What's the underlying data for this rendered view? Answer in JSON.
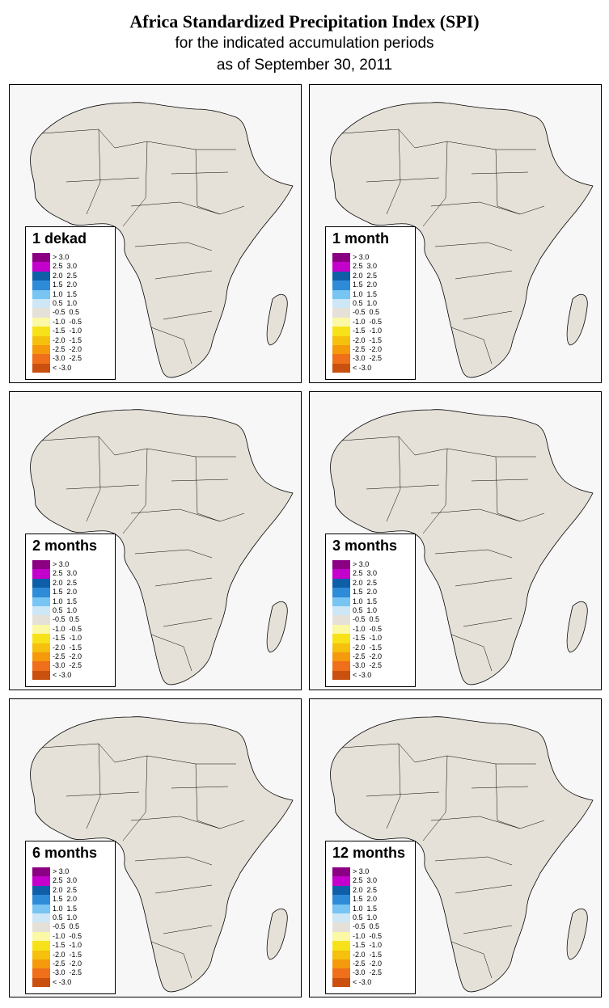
{
  "header": {
    "title": "Africa Standardized Precipitation Index (SPI)",
    "subtitle_line1": "for the indicated accumulation periods",
    "subtitle_line2": "as of September 30, 2011"
  },
  "legend_classes": [
    {
      "label": "> 3.0",
      "color": "#8b0083"
    },
    {
      "label": "2.5  3.0",
      "color": "#c400cc"
    },
    {
      "label": "2.0  2.5",
      "color": "#0f5fa8"
    },
    {
      "label": "1.5  2.0",
      "color": "#2e8bd8"
    },
    {
      "label": "1.0  1.5",
      "color": "#78c4f2"
    },
    {
      "label": "0.5  1.0",
      "color": "#cde7f7"
    },
    {
      "label": "-0.5  0.5",
      "color": "#e6e1d8"
    },
    {
      "label": "-1.0  -0.5",
      "color": "#fbf8a6"
    },
    {
      "label": "-1.5  -1.0",
      "color": "#f7e21a"
    },
    {
      "label": "-2.0  -1.5",
      "color": "#f5c00e"
    },
    {
      "label": "-2.5  -2.0",
      "color": "#f49a0c"
    },
    {
      "label": "-3.0  -2.5",
      "color": "#ef6f1a"
    },
    {
      "label": "< -3.0",
      "color": "#c9500f"
    }
  ],
  "panels": [
    {
      "title": "1 dekad"
    },
    {
      "title": "1 month"
    },
    {
      "title": "2 months"
    },
    {
      "title": "3 months"
    },
    {
      "title": "6 months"
    },
    {
      "title": "12 months"
    }
  ],
  "colors": {
    "land": "#e6e1d8",
    "ocean": "#f7f7f7",
    "border": "#000000"
  }
}
